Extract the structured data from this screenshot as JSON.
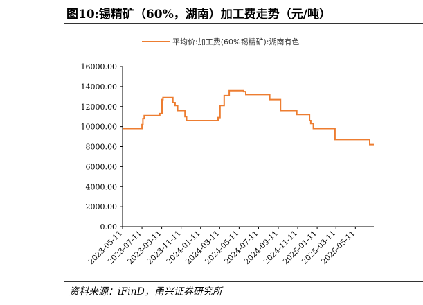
{
  "title": "图10:锡精矿（60%，湖南）加工费走势（元/吨）",
  "source": "资料来源：iFinD，甬兴证券研究所",
  "chart_data": {
    "type": "line",
    "title": "图10:锡精矿（60%，湖南）加工费走势（元/吨）",
    "xlabel": "",
    "ylabel": "",
    "ylim": [
      0,
      16000
    ],
    "yticks": [
      0,
      2000,
      4000,
      6000,
      8000,
      10000,
      12000,
      14000,
      16000
    ],
    "ytick_labels": [
      "0.00",
      "2000.00",
      "4000.00",
      "6000.00",
      "8000.00",
      "10000.00",
      "12000.00",
      "14000.00",
      "16000.00"
    ],
    "xlim": [
      "2023-05-11",
      "2025-07-08"
    ],
    "xtick_labels": [
      "2023-05-11",
      "2023-07-11",
      "2023-09-11",
      "2023-11-11",
      "2024-01-11",
      "2024-03-11",
      "2024-05-11",
      "2024-07-11",
      "2024-09-11",
      "2024-11-11",
      "2025-01-11",
      "2025-03-11",
      "2025-05-11"
    ],
    "legend": "top-center",
    "grid": false,
    "series": [
      {
        "name": "平均价:加工费(60%锡精矿):湖南有色",
        "color": "#ED7D31",
        "step": true,
        "x": [
          "2023-05-11",
          "2023-07-11",
          "2023-07-14",
          "2023-07-18",
          "2023-09-05",
          "2023-09-12",
          "2023-09-15",
          "2023-10-16",
          "2023-10-23",
          "2023-10-31",
          "2023-11-23",
          "2023-11-28",
          "2024-03-06",
          "2024-03-12",
          "2024-03-25",
          "2024-04-10",
          "2024-05-25",
          "2024-06-01",
          "2024-08-15",
          "2024-09-18",
          "2024-11-08",
          "2024-12-18",
          "2024-12-22",
          "2024-12-30",
          "2025-03-08",
          "2025-06-25",
          "2025-07-08"
        ],
        "values": [
          9800,
          10200,
          10800,
          11100,
          11300,
          12700,
          12900,
          12400,
          12100,
          11600,
          11000,
          10600,
          10900,
          12100,
          13100,
          13600,
          13500,
          13200,
          12700,
          11600,
          11200,
          10600,
          10300,
          9800,
          8700,
          8200,
          8200
        ]
      }
    ]
  }
}
